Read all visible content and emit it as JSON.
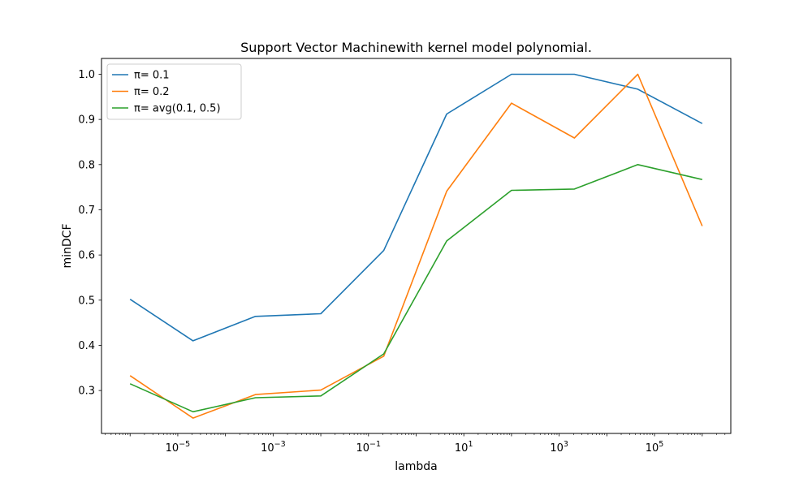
{
  "chart_data": {
    "type": "line",
    "title": "Support Vector Machinewith kernel model polynomial.",
    "xlabel": "lambda",
    "ylabel": "minDCF",
    "xscale": "log",
    "xlim_exp": [
      -6.6,
      6.6
    ],
    "ylim": [
      0.205,
      1.035
    ],
    "x_ticks": [
      {
        "exp": -5,
        "base": "10",
        "power": "−5"
      },
      {
        "exp": -3,
        "base": "10",
        "power": "−3"
      },
      {
        "exp": -1,
        "base": "10",
        "power": "−1"
      },
      {
        "exp": 1,
        "base": "10",
        "power": "1"
      },
      {
        "exp": 3,
        "base": "10",
        "power": "3"
      },
      {
        "exp": 5,
        "base": "10",
        "power": "5"
      }
    ],
    "y_ticks": [
      "0.3",
      "0.4",
      "0.5",
      "0.6",
      "0.7",
      "0.8",
      "0.9",
      "1.0"
    ],
    "grid": false,
    "legend_position": "top-left",
    "x_exp": [
      -6.0,
      -4.68,
      -3.37,
      -2.0,
      -0.68,
      0.64,
      2.0,
      3.32,
      4.65,
      6.0
    ],
    "series": [
      {
        "name": "π= 0.1",
        "color": "#1f77b4",
        "values": [
          0.502,
          0.41,
          0.464,
          0.47,
          0.61,
          0.912,
          1.0,
          1.0,
          0.967,
          0.891
        ]
      },
      {
        "name": "π= 0.2",
        "color": "#ff7f0e",
        "values": [
          0.333,
          0.239,
          0.291,
          0.301,
          0.376,
          0.741,
          0.936,
          0.859,
          1.0,
          0.664
        ]
      },
      {
        "name": "π= avg(0.1, 0.5)",
        "color": "#2ca02c",
        "values": [
          0.315,
          0.253,
          0.284,
          0.288,
          0.381,
          0.631,
          0.743,
          0.746,
          0.8,
          0.767
        ]
      }
    ]
  }
}
